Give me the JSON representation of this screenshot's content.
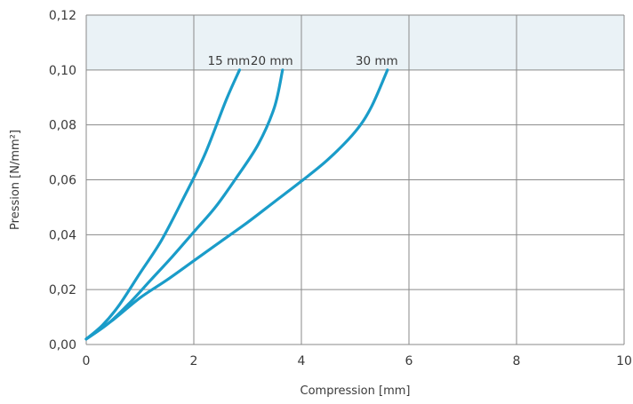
{
  "chart_data": {
    "type": "line",
    "title": "",
    "xlabel": "Compression [mm]",
    "ylabel": "Pression [N/mm²]",
    "xlim": [
      0,
      10
    ],
    "ylim": [
      0,
      0.12
    ],
    "x_ticks": [
      0,
      2,
      4,
      6,
      8,
      10
    ],
    "x_tick_labels": [
      "0",
      "2",
      "4",
      "6",
      "8",
      "10"
    ],
    "y_ticks": [
      0,
      0.02,
      0.04,
      0.06,
      0.08,
      0.1,
      0.12
    ],
    "y_tick_labels": [
      "0,00",
      "0,02",
      "0,04",
      "0,06",
      "0,08",
      "0,10",
      "0,12"
    ],
    "grid": true,
    "shaded_band": {
      "y_from": 0.1,
      "y_to": 0.12
    },
    "colors": {
      "line": "#1a9cc9",
      "grid": "#8a8a8a",
      "band": "#eaf2f6"
    },
    "series": [
      {
        "name": "15 mm",
        "x": [
          0,
          0.3,
          0.6,
          1.0,
          1.4,
          1.8,
          2.2,
          2.6,
          2.85
        ],
        "y": [
          0.002,
          0.007,
          0.014,
          0.026,
          0.038,
          0.053,
          0.069,
          0.089,
          0.1
        ]
      },
      {
        "name": "20 mm",
        "x": [
          0,
          0.4,
          0.8,
          1.2,
          1.6,
          2.0,
          2.4,
          2.8,
          3.2,
          3.5,
          3.65
        ],
        "y": [
          0.002,
          0.0075,
          0.015,
          0.0235,
          0.032,
          0.041,
          0.05,
          0.061,
          0.073,
          0.0865,
          0.1
        ]
      },
      {
        "name": "30 mm",
        "x": [
          0,
          0.5,
          1.0,
          1.5,
          2.0,
          2.5,
          3.0,
          3.5,
          4.0,
          4.5,
          5.0,
          5.3,
          5.6
        ],
        "y": [
          0.002,
          0.009,
          0.017,
          0.0235,
          0.0305,
          0.0375,
          0.0445,
          0.052,
          0.0595,
          0.0675,
          0.0775,
          0.0865,
          0.1
        ]
      }
    ]
  }
}
